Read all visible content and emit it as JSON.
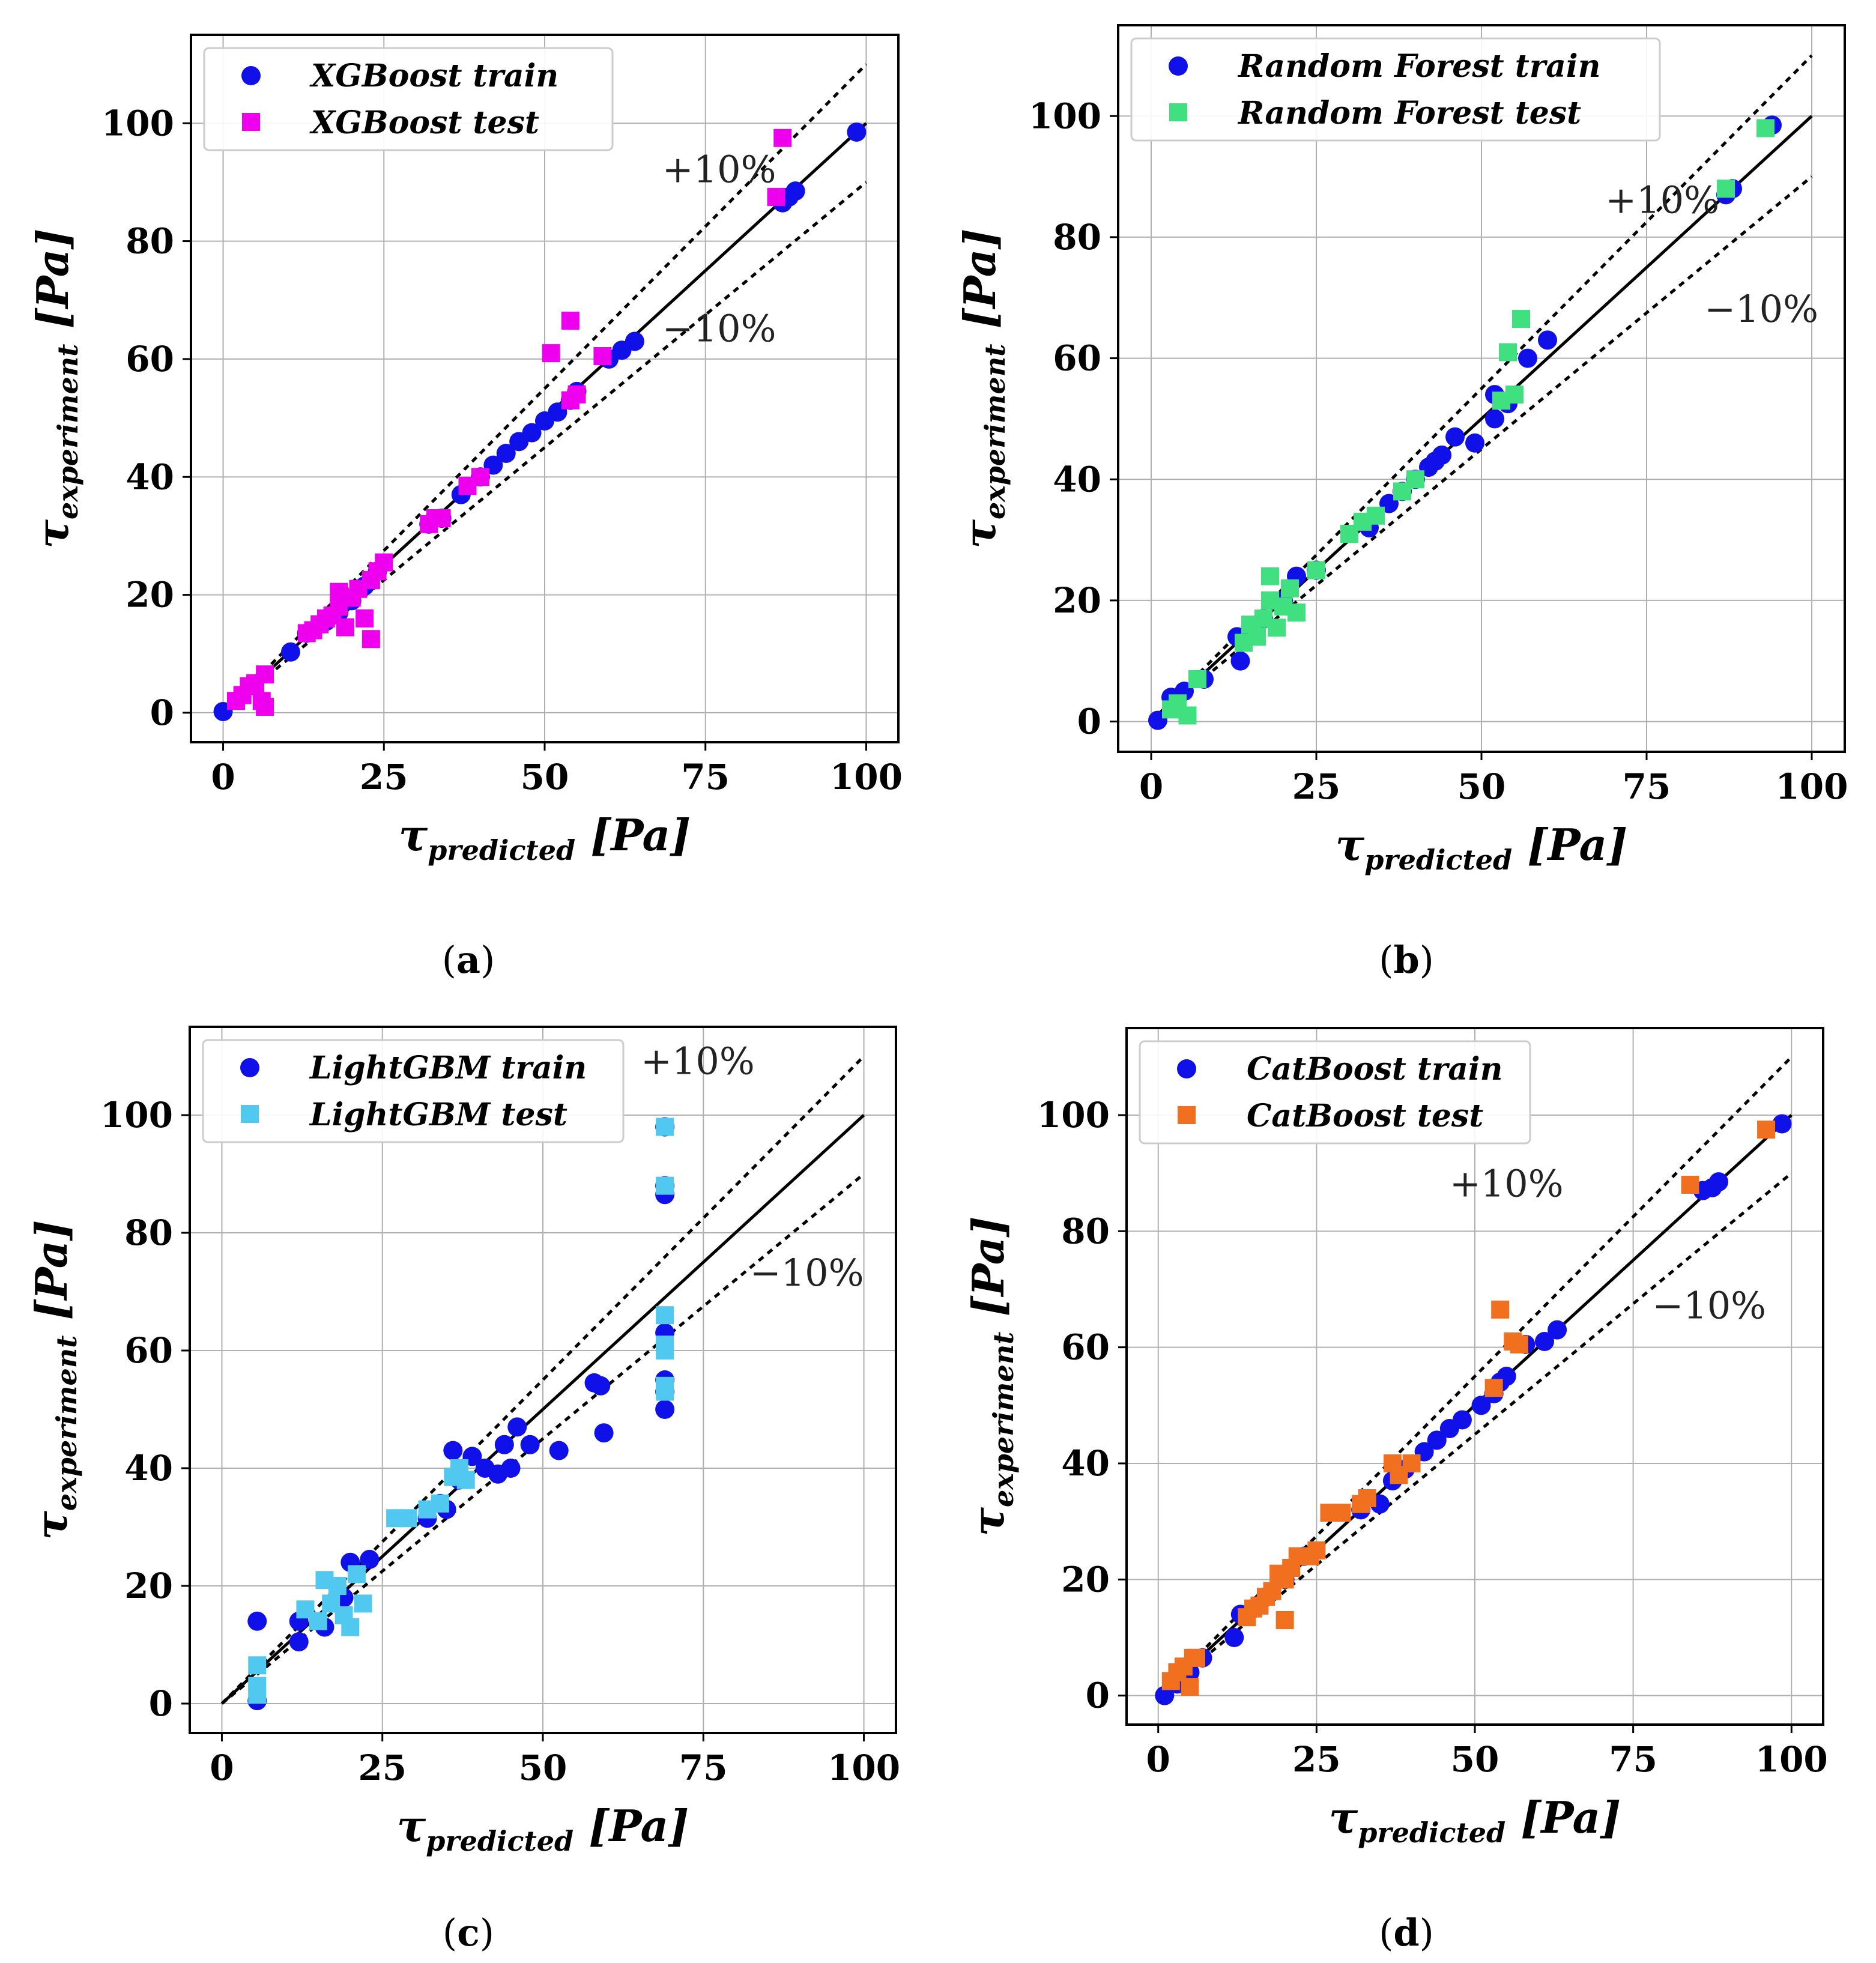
{
  "figure": {
    "x_axis_label": {
      "symbol": "τ",
      "subscript": "predicted",
      "unit": "[Pa]"
    },
    "y_axis_label": {
      "symbol": "τ",
      "subscript": "experiment",
      "unit": "[Pa]"
    },
    "x_ticks": [
      "0",
      "25",
      "50",
      "75",
      "100"
    ],
    "y_ticks": [
      "0",
      "20",
      "40",
      "60",
      "80",
      "100"
    ],
    "band_plus": "+10%",
    "band_minus": "−10%",
    "train_color": "#1010e8",
    "line_color": "#000000"
  },
  "chart_data": [
    {
      "type": "scatter",
      "caption_letter": "a",
      "title": "",
      "xlabel": "τ_predicted [Pa]",
      "ylabel": "τ_experiment [Pa]",
      "xlim": [
        -5,
        105
      ],
      "ylim": [
        -5,
        115
      ],
      "grid": true,
      "legend": "top-left",
      "reference_lines": [
        "y = x",
        "y = 1.1x",
        "y = 0.9x"
      ],
      "series": [
        {
          "name": "XGBoost train",
          "marker": "circle",
          "color": "#1010e8",
          "points": [
            [
              0,
              0.2
            ],
            [
              10.5,
              10.3
            ],
            [
              13,
              13.5
            ],
            [
              16,
              15.5
            ],
            [
              18,
              17
            ],
            [
              20,
              19
            ],
            [
              22,
              21.5
            ],
            [
              24,
              24
            ],
            [
              32,
              32
            ],
            [
              34,
              33
            ],
            [
              37,
              37
            ],
            [
              40,
              40
            ],
            [
              42,
              42
            ],
            [
              44,
              44
            ],
            [
              46,
              46
            ],
            [
              48,
              47.5
            ],
            [
              50,
              49.5
            ],
            [
              52,
              51
            ],
            [
              54,
              53
            ],
            [
              55,
              54.5
            ],
            [
              60,
              60
            ],
            [
              62,
              61.5
            ],
            [
              64,
              63
            ],
            [
              87,
              86.5
            ],
            [
              88,
              87.5
            ],
            [
              89,
              88.5
            ],
            [
              98.5,
              98.5
            ]
          ]
        },
        {
          "name": "XGBoost test",
          "marker": "square",
          "color": "#ee00ee",
          "points": [
            [
              2,
              2
            ],
            [
              3,
              3
            ],
            [
              4,
              4.5
            ],
            [
              5,
              5
            ],
            [
              6,
              2
            ],
            [
              6.5,
              6.5
            ],
            [
              6.5,
              1
            ],
            [
              13,
              13.5
            ],
            [
              14,
              14
            ],
            [
              15,
              15
            ],
            [
              16,
              16
            ],
            [
              17,
              16.5
            ],
            [
              18,
              18
            ],
            [
              18,
              20.5
            ],
            [
              19,
              14.5
            ],
            [
              20,
              19.5
            ],
            [
              21,
              21
            ],
            [
              22,
              16
            ],
            [
              23,
              12.5
            ],
            [
              23,
              22.5
            ],
            [
              24,
              24
            ],
            [
              25,
              25.5
            ],
            [
              32,
              32
            ],
            [
              33,
              33
            ],
            [
              34,
              33
            ],
            [
              38,
              38.5
            ],
            [
              40,
              40
            ],
            [
              51,
              61
            ],
            [
              54,
              66.5
            ],
            [
              54,
              53
            ],
            [
              55,
              54
            ],
            [
              59,
              60.5
            ],
            [
              86,
              87.5
            ],
            [
              87,
              97.5
            ]
          ]
        }
      ]
    },
    {
      "type": "scatter",
      "caption_letter": "b",
      "title": "",
      "xlabel": "τ_predicted [Pa]",
      "ylabel": "τ_experiment [Pa]",
      "xlim": [
        -5,
        105
      ],
      "ylim": [
        -5,
        115
      ],
      "grid": true,
      "legend": "top-left",
      "reference_lines": [
        "y = x",
        "y = 1.1x",
        "y = 0.9x"
      ],
      "series": [
        {
          "name": "Random Forest train",
          "marker": "circle",
          "color": "#1010e8",
          "points": [
            [
              1,
              0.2
            ],
            [
              3,
              4
            ],
            [
              5,
              5
            ],
            [
              8,
              7
            ],
            [
              13,
              14
            ],
            [
              13.5,
              10
            ],
            [
              15,
              15
            ],
            [
              17,
              17
            ],
            [
              20,
              20
            ],
            [
              22,
              24
            ],
            [
              25,
              25
            ],
            [
              33,
              32
            ],
            [
              36,
              36
            ],
            [
              38,
              38
            ],
            [
              40,
              40
            ],
            [
              42,
              42
            ],
            [
              43,
              43
            ],
            [
              44,
              44
            ],
            [
              46,
              47
            ],
            [
              49,
              46
            ],
            [
              52,
              54
            ],
            [
              52,
              50
            ],
            [
              54,
              52.5
            ],
            [
              57,
              60
            ],
            [
              60,
              63
            ],
            [
              87,
              87
            ],
            [
              88,
              88
            ],
            [
              94,
              98.5
            ]
          ]
        },
        {
          "name": "Random Forest test",
          "marker": "square",
          "color": "#40e080",
          "points": [
            [
              3,
              2
            ],
            [
              4,
              3
            ],
            [
              5.5,
              1
            ],
            [
              7,
              7
            ],
            [
              14,
              13
            ],
            [
              15,
              16
            ],
            [
              16,
              14
            ],
            [
              17,
              17
            ],
            [
              18,
              24
            ],
            [
              18,
              20
            ],
            [
              19,
              15.5
            ],
            [
              20,
              19
            ],
            [
              21,
              22
            ],
            [
              22,
              18
            ],
            [
              25,
              25
            ],
            [
              30,
              31
            ],
            [
              32,
              33
            ],
            [
              34,
              34
            ],
            [
              38,
              38
            ],
            [
              40,
              40
            ],
            [
              54,
              61
            ],
            [
              56,
              66.5
            ],
            [
              53,
              53
            ],
            [
              55,
              54
            ],
            [
              87,
              88
            ],
            [
              93,
              98
            ]
          ]
        }
      ]
    },
    {
      "type": "scatter",
      "caption_letter": "c",
      "title": "",
      "xlabel": "τ_predicted [Pa]",
      "ylabel": "τ_experiment [Pa]",
      "xlim": [
        -5,
        105
      ],
      "ylim": [
        -5,
        115
      ],
      "grid": true,
      "legend": "top-left",
      "reference_lines": [
        "y = x",
        "y = 1.1x",
        "y = 0.9x"
      ],
      "series": [
        {
          "name": "LightGBM train",
          "marker": "circle",
          "color": "#1010e8",
          "points": [
            [
              5.5,
              14
            ],
            [
              5.5,
              0.5
            ],
            [
              12,
              14
            ],
            [
              12,
              10.5
            ],
            [
              16,
              13
            ],
            [
              19,
              18
            ],
            [
              20,
              24
            ],
            [
              23,
              24.5
            ],
            [
              32,
              31.5
            ],
            [
              34,
              34
            ],
            [
              35,
              33
            ],
            [
              36,
              43
            ],
            [
              37,
              38
            ],
            [
              39,
              42
            ],
            [
              41,
              40
            ],
            [
              43,
              39
            ],
            [
              44,
              44
            ],
            [
              45,
              40
            ],
            [
              46,
              47
            ],
            [
              48,
              44
            ],
            [
              52.5,
              43
            ],
            [
              58,
              54.5
            ],
            [
              59,
              54
            ],
            [
              59.5,
              46
            ],
            [
              69,
              98
            ],
            [
              69,
              88
            ],
            [
              69,
              86.5
            ],
            [
              69,
              63
            ],
            [
              69,
              55
            ],
            [
              69,
              53
            ],
            [
              69,
              50
            ]
          ]
        },
        {
          "name": "LightGBM test",
          "marker": "square",
          "color": "#50c8f0",
          "points": [
            [
              5.5,
              6.5
            ],
            [
              5.5,
              3
            ],
            [
              5.5,
              1.5
            ],
            [
              13,
              16
            ],
            [
              15,
              14
            ],
            [
              16,
              21
            ],
            [
              17,
              17
            ],
            [
              18,
              20
            ],
            [
              19,
              15
            ],
            [
              20,
              13
            ],
            [
              21,
              22
            ],
            [
              22,
              17
            ],
            [
              27,
              31.5
            ],
            [
              29,
              31.5
            ],
            [
              32,
              33
            ],
            [
              34,
              34
            ],
            [
              36,
              38.5
            ],
            [
              37,
              40
            ],
            [
              38,
              38
            ],
            [
              69,
              98
            ],
            [
              69,
              88
            ],
            [
              69,
              66
            ],
            [
              69,
              61
            ],
            [
              69,
              60
            ],
            [
              69,
              54
            ],
            [
              69,
              53
            ]
          ]
        }
      ]
    },
    {
      "type": "scatter",
      "caption_letter": "d",
      "title": "",
      "xlabel": "τ_predicted [Pa]",
      "ylabel": "τ_experiment [Pa]",
      "xlim": [
        -5,
        105
      ],
      "ylim": [
        -5,
        115
      ],
      "grid": true,
      "legend": "top-left",
      "reference_lines": [
        "y = x",
        "y = 1.1x",
        "y = 0.9x"
      ],
      "series": [
        {
          "name": "CatBoost train",
          "marker": "circle",
          "color": "#1010e8",
          "points": [
            [
              1,
              0
            ],
            [
              3,
              2
            ],
            [
              5,
              4
            ],
            [
              7,
              6.5
            ],
            [
              12,
              10
            ],
            [
              13,
              14
            ],
            [
              15,
              15
            ],
            [
              17,
              17
            ],
            [
              20,
              20
            ],
            [
              23,
              24
            ],
            [
              32,
              32
            ],
            [
              35,
              33
            ],
            [
              37,
              37
            ],
            [
              39,
              39
            ],
            [
              42,
              42
            ],
            [
              44,
              44
            ],
            [
              46,
              46
            ],
            [
              48,
              47.5
            ],
            [
              51,
              50
            ],
            [
              53,
              52
            ],
            [
              54,
              54
            ],
            [
              55,
              55
            ],
            [
              58,
              60.5
            ],
            [
              61,
              61
            ],
            [
              63,
              63
            ],
            [
              86,
              87
            ],
            [
              87.5,
              87.5
            ],
            [
              88.5,
              88.5
            ],
            [
              98.5,
              98.5
            ]
          ]
        },
        {
          "name": "CatBoost test",
          "marker": "square",
          "color": "#f07020",
          "points": [
            [
              2,
              2.5
            ],
            [
              3,
              4
            ],
            [
              4,
              5
            ],
            [
              5,
              1.5
            ],
            [
              5.5,
              6.5
            ],
            [
              6,
              6.5
            ],
            [
              14,
              13.5
            ],
            [
              15,
              15
            ],
            [
              16,
              15.5
            ],
            [
              17,
              17
            ],
            [
              18,
              18
            ],
            [
              19,
              21
            ],
            [
              20,
              13
            ],
            [
              20,
              20
            ],
            [
              21,
              22
            ],
            [
              22,
              24
            ],
            [
              24,
              24
            ],
            [
              25,
              25
            ],
            [
              27,
              31.5
            ],
            [
              29,
              31.5
            ],
            [
              32,
              33
            ],
            [
              33,
              34
            ],
            [
              37,
              40
            ],
            [
              38,
              38
            ],
            [
              40,
              40
            ],
            [
              53,
              53
            ],
            [
              54,
              66.5
            ],
            [
              56,
              61
            ],
            [
              57,
              60.5
            ],
            [
              84,
              88
            ],
            [
              96,
              97.5
            ]
          ]
        }
      ]
    }
  ]
}
